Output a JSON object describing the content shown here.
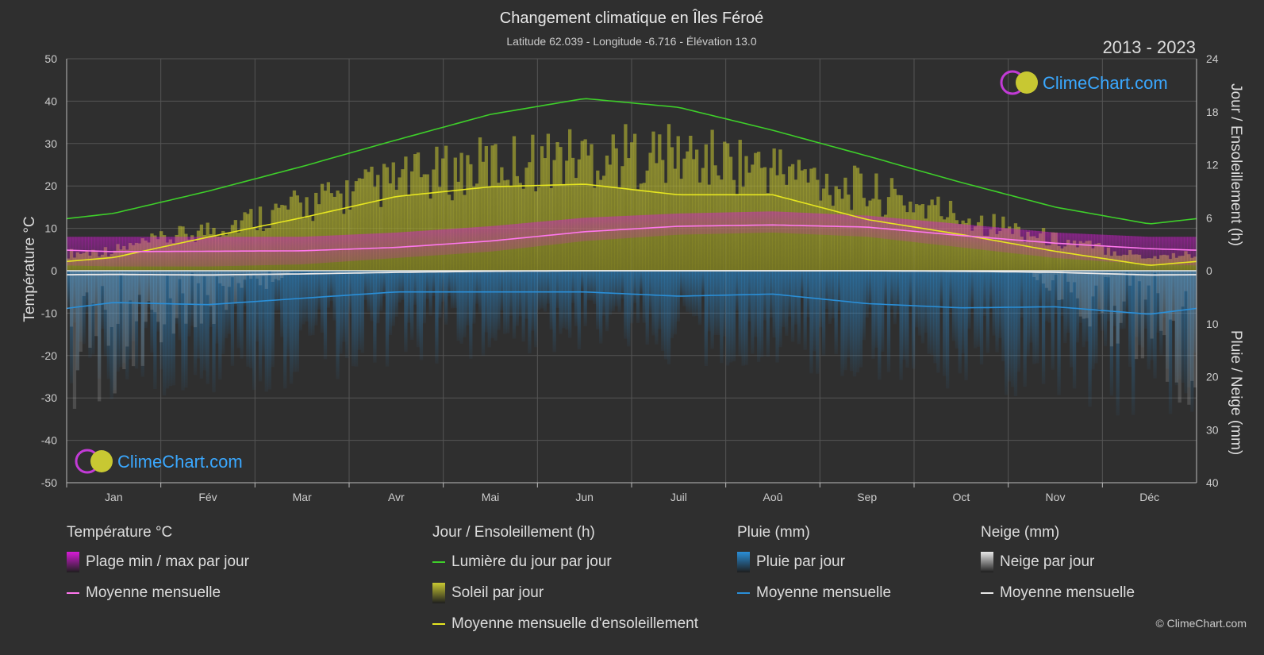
{
  "title": "Changement climatique en Îles Féroé",
  "subtitle": "Latitude 62.039 - Longitude -6.716 - Élévation 13.0",
  "period": "2013 - 2023",
  "brand": "ClimeChart.com",
  "copyright": "© ClimeChart.com",
  "colors": {
    "background": "#2f2f2f",
    "daylight": "#3ecf2a",
    "sunshine": "#e6e620",
    "temp_mean": "#ff77ee",
    "temp_range": "#d81bd8",
    "rain": "#2a8fd8",
    "snow": "#e8e8e8",
    "brand": "#3aa8ff"
  },
  "chart_data": {
    "type": "line",
    "categories": [
      "Jan",
      "Fév",
      "Mar",
      "Avr",
      "Mai",
      "Jun",
      "Juil",
      "Aoû",
      "Sep",
      "Oct",
      "Nov",
      "Déc"
    ],
    "axes": {
      "left": {
        "label": "Température °C",
        "min": -50,
        "max": 50,
        "ticks": [
          50,
          40,
          30,
          20,
          10,
          0,
          -10,
          -20,
          -30,
          -40,
          -50
        ]
      },
      "right_top": {
        "label": "Jour / Ensoleillement (h)",
        "min": 0,
        "max": 24,
        "ticks": [
          24,
          18,
          12,
          6,
          0
        ]
      },
      "right_bottom": {
        "label": "Pluie / Neige (mm)",
        "min": 0,
        "max": 40,
        "ticks": [
          0,
          10,
          20,
          30,
          40
        ]
      }
    },
    "grid": true,
    "series": [
      {
        "name": "Lumière du jour par jour",
        "unit": "h",
        "values": [
          6.5,
          9.0,
          11.8,
          14.8,
          17.7,
          19.5,
          18.5,
          15.9,
          13.0,
          10.0,
          7.2,
          5.3
        ]
      },
      {
        "name": "Moyenne mensuelle d'ensoleillement",
        "unit": "h",
        "values": [
          1.5,
          3.8,
          6.0,
          8.4,
          9.5,
          9.8,
          8.6,
          8.6,
          5.8,
          4.1,
          2.2,
          0.6
        ]
      },
      {
        "name": "Moyenne mensuelle",
        "group": "Température °C",
        "unit": "°C",
        "values": [
          4.5,
          4.6,
          4.7,
          5.5,
          7.0,
          9.2,
          10.5,
          10.8,
          10.3,
          8.3,
          6.5,
          5.2
        ]
      },
      {
        "name": "Moyenne mensuelle",
        "group": "Pluie (mm)",
        "unit": "mm",
        "values": [
          6.0,
          6.4,
          5.2,
          4.0,
          4.0,
          4.0,
          4.8,
          4.4,
          6.2,
          7.0,
          6.8,
          8.2
        ]
      },
      {
        "name": "Moyenne mensuelle",
        "group": "Neige (mm)",
        "unit": "mm",
        "values": [
          0.7,
          0.8,
          0.6,
          0.3,
          0.1,
          0.0,
          0.0,
          0.0,
          0.0,
          0.1,
          0.3,
          0.8
        ]
      }
    ],
    "temp_range_daily": {
      "min": [
        1.0,
        1.0,
        1.5,
        3.0,
        4.5,
        7.0,
        8.5,
        9.0,
        8.0,
        5.5,
        3.0,
        1.5
      ],
      "max": [
        8.0,
        8.0,
        8.0,
        9.0,
        10.5,
        12.5,
        13.5,
        14.0,
        13.0,
        11.0,
        9.0,
        8.0
      ]
    },
    "sunshine_daily_peak": [
      3.0,
      6.0,
      9.5,
      13.0,
      15.5,
      16.8,
      16.8,
      15.0,
      11.5,
      8.0,
      4.5,
      2.0
    ],
    "rain_daily_peak": [
      25,
      25,
      22,
      18,
      17,
      15,
      18,
      18,
      22,
      25,
      25,
      30
    ]
  },
  "legend": {
    "groups": [
      {
        "title": "Température °C",
        "items": [
          {
            "label": "Plage min / max par jour",
            "kind": "box",
            "color": "#d81bd8"
          },
          {
            "label": "Moyenne mensuelle",
            "kind": "line",
            "color": "#ff77ee"
          }
        ]
      },
      {
        "title": "Jour / Ensoleillement (h)",
        "items": [
          {
            "label": "Lumière du jour par jour",
            "kind": "line",
            "color": "#3ecf2a"
          },
          {
            "label": "Soleil par jour",
            "kind": "box",
            "color": "#c8c832"
          },
          {
            "label": "Moyenne mensuelle d'ensoleillement",
            "kind": "line",
            "color": "#e6e620"
          }
        ]
      },
      {
        "title": "Pluie (mm)",
        "items": [
          {
            "label": "Pluie par jour",
            "kind": "box",
            "color": "#2a8fd8"
          },
          {
            "label": "Moyenne mensuelle",
            "kind": "line",
            "color": "#2a8fd8"
          }
        ]
      },
      {
        "title": "Neige (mm)",
        "items": [
          {
            "label": "Neige par jour",
            "kind": "box",
            "color": "#e8e8e8"
          },
          {
            "label": "Moyenne mensuelle",
            "kind": "line",
            "color": "#e8e8e8"
          }
        ]
      }
    ]
  }
}
